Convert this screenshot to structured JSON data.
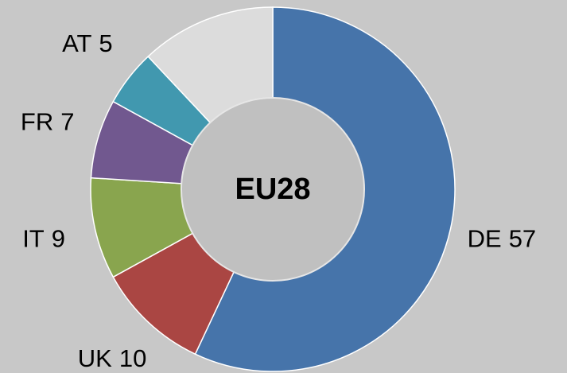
{
  "chart_data": {
    "type": "donut",
    "center_label": "EU28",
    "categories": [
      "DE",
      "UK",
      "IT",
      "FR",
      "AT",
      null
    ],
    "values": [
      57,
      10,
      9,
      7,
      5,
      12
    ],
    "colors": [
      "#4674aa",
      "#aa4643",
      "#89a54e",
      "#71588f",
      "#4198af",
      "#dcdcdc"
    ]
  }
}
